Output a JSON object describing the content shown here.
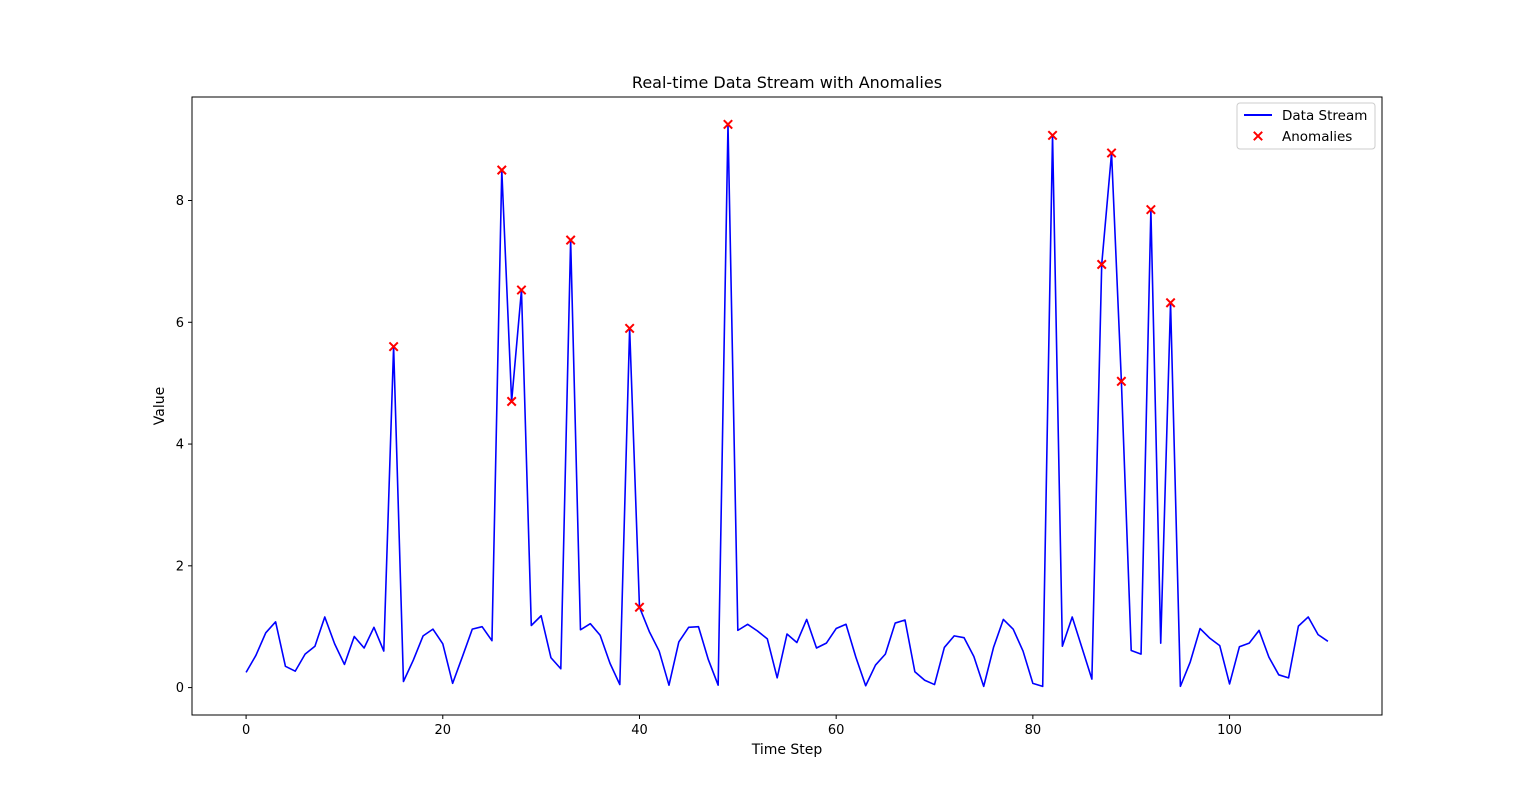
{
  "chart_data": {
    "type": "line",
    "title": "Real-time Data Stream with Anomalies",
    "xlabel": "Time Step",
    "ylabel": "Value",
    "xlim": [
      -5.5,
      115.5
    ],
    "ylim": [
      -0.45,
      9.7
    ],
    "xticks": [
      0,
      20,
      40,
      60,
      80,
      100
    ],
    "yticks": [
      0,
      2,
      4,
      6,
      8
    ],
    "grid": false,
    "legend_position": "top-right",
    "series": [
      {
        "name": "Data Stream",
        "kind": "line",
        "color": "#0000ff",
        "x": [
          0,
          1,
          2,
          3,
          4,
          5,
          6,
          7,
          8,
          9,
          10,
          11,
          12,
          13,
          14,
          15,
          16,
          17,
          18,
          19,
          20,
          21,
          22,
          23,
          24,
          25,
          26,
          27,
          28,
          29,
          30,
          31,
          32,
          33,
          34,
          35,
          36,
          37,
          38,
          39,
          40,
          41,
          42,
          43,
          44,
          45,
          46,
          47,
          48,
          49,
          50,
          51,
          52,
          53,
          54,
          55,
          56,
          57,
          58,
          59,
          60,
          61,
          62,
          63,
          64,
          65,
          66,
          67,
          68,
          69,
          70,
          71,
          72,
          73,
          74,
          75,
          76,
          77,
          78,
          79,
          80,
          81,
          82,
          83,
          84,
          85,
          86,
          87,
          88,
          89,
          90,
          91,
          92,
          93,
          94,
          95,
          96,
          97,
          98,
          99,
          100,
          101,
          102,
          103,
          104,
          105,
          106,
          107,
          108,
          109,
          110
        ],
        "values": [
          0.25,
          0.53,
          0.9,
          1.08,
          0.35,
          0.27,
          0.55,
          0.68,
          1.16,
          0.72,
          0.38,
          0.84,
          0.65,
          0.99,
          0.6,
          5.6,
          0.1,
          0.45,
          0.85,
          0.96,
          0.72,
          0.07,
          0.51,
          0.96,
          1.0,
          0.77,
          8.5,
          4.7,
          6.53,
          1.02,
          1.18,
          0.49,
          0.31,
          7.35,
          0.95,
          1.05,
          0.86,
          0.4,
          0.05,
          5.9,
          1.32,
          0.92,
          0.6,
          0.04,
          0.75,
          0.99,
          1.0,
          0.46,
          0.04,
          9.25,
          0.94,
          1.04,
          0.93,
          0.8,
          0.16,
          0.88,
          0.74,
          1.12,
          0.65,
          0.73,
          0.97,
          1.04,
          0.5,
          0.03,
          0.37,
          0.55,
          1.06,
          1.11,
          0.26,
          0.12,
          0.05,
          0.66,
          0.85,
          0.82,
          0.51,
          0.02,
          0.66,
          1.12,
          0.96,
          0.6,
          0.07,
          0.02,
          9.07,
          0.68,
          1.16,
          0.65,
          0.14,
          6.95,
          8.78,
          5.03,
          0.61,
          0.55,
          7.85,
          0.73,
          6.32,
          0.02,
          0.42,
          0.97,
          0.81,
          0.69,
          0.06,
          0.67,
          0.73,
          0.94,
          0.5,
          0.21,
          0.16,
          1.01,
          1.16,
          0.87,
          0.76
        ]
      },
      {
        "name": "Anomalies",
        "kind": "scatter",
        "marker": "x",
        "color": "#ff0000",
        "x": [
          15,
          26,
          27,
          28,
          33,
          39,
          40,
          49,
          82,
          87,
          88,
          89,
          92,
          94
        ],
        "values": [
          5.6,
          8.5,
          4.7,
          6.53,
          7.35,
          5.9,
          1.32,
          9.25,
          9.07,
          6.95,
          8.78,
          5.03,
          7.85,
          6.32
        ]
      }
    ]
  }
}
